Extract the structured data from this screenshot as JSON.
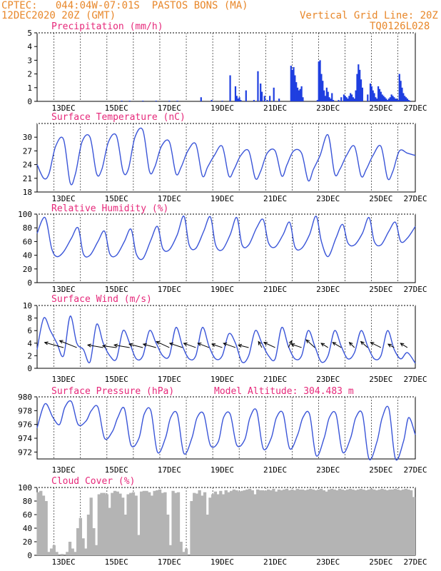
{
  "header": {
    "station": "CPTEC:   044:04W-07:01S  PASTOS BONS (MA)",
    "run": "12DEC2020 20Z (GMT)",
    "grid_note": "Vertical Grid Line: 20Z",
    "code": "TQ0126L028"
  },
  "colors": {
    "line": "#3a55d8",
    "bar": "#1e3ee0",
    "cloud": "#b4b4b4",
    "title": "#e6287a",
    "header": "#e8872a",
    "arrow": "#000000"
  },
  "x_ticks": [
    "13DEC",
    "15DEC",
    "17DEC",
    "19DEC",
    "21DEC",
    "23DEC",
    "25DEC",
    "27DEC"
  ],
  "chart_data": [
    {
      "type": "bar",
      "title": "Precipitation (mm/h)",
      "ylim": [
        0,
        5
      ],
      "yticks": [
        "0",
        "1",
        "2",
        "3",
        "4",
        "5"
      ],
      "x": [
        3.2,
        3.5,
        4.0,
        4.5,
        5.0,
        5.3,
        6.2,
        6.6,
        7.0,
        7.3,
        7.5,
        7.55,
        7.6,
        7.65,
        7.7,
        7.9,
        8.2,
        8.35,
        8.45,
        8.5,
        8.6,
        8.7,
        8.8,
        8.95,
        9.15,
        9.6,
        9.65,
        9.7,
        9.75,
        9.8,
        9.85,
        9.9,
        9.95,
        10.0,
        10.05,
        10.6,
        10.65,
        10.7,
        10.75,
        10.8,
        10.85,
        10.9,
        10.95,
        11.0,
        11.05,
        11.1,
        11.15,
        11.2,
        11.4,
        11.5,
        11.6,
        11.65,
        11.7,
        11.75,
        11.8,
        11.85,
        11.9,
        11.95,
        12.0,
        12.05,
        12.1,
        12.15,
        12.2,
        12.25,
        12.3,
        12.5,
        12.6,
        12.65,
        12.7,
        12.75,
        12.8,
        12.85,
        12.9,
        12.95,
        13.0,
        13.05,
        13.1,
        13.15,
        13.2,
        13.25,
        13.3,
        13.35,
        13.4,
        13.45,
        13.5,
        13.55,
        13.6,
        13.65,
        13.7,
        13.75,
        13.8,
        13.85,
        13.9,
        13.95,
        14.0,
        14.05,
        14.1
      ],
      "values": [
        0.05,
        0.05,
        0.05,
        0.05,
        0.05,
        0.05,
        0.3,
        0.1,
        0.05,
        1.9,
        1.1,
        0.4,
        0.2,
        0.3,
        0.1,
        0.8,
        0.1,
        2.2,
        1.3,
        0.7,
        0.4,
        0.1,
        0.4,
        1.0,
        0.2,
        2.6,
        2.3,
        2.5,
        1.9,
        1.4,
        1.0,
        0.8,
        0.9,
        1.1,
        0.3,
        0.1,
        2.9,
        3.0,
        2.0,
        1.5,
        0.8,
        0.4,
        1.0,
        0.7,
        0.3,
        0.2,
        0.6,
        0.1,
        0.1,
        0.3,
        0.5,
        0.4,
        0.3,
        0.2,
        0.4,
        0.6,
        0.5,
        0.3,
        0.2,
        0.8,
        2.0,
        2.7,
        2.3,
        1.6,
        1.0,
        0.5,
        1.3,
        1.1,
        0.8,
        0.6,
        0.3,
        0.2,
        1.1,
        0.9,
        0.7,
        0.5,
        0.4,
        0.3,
        0.2,
        0.1,
        0.2,
        0.3,
        0.5,
        0.4,
        0.3,
        0.2,
        0.2,
        0.1,
        2.0,
        1.5,
        1.0,
        0.6,
        0.4,
        0.3,
        0.2,
        0.1,
        0.05
      ]
    },
    {
      "type": "line",
      "title": "Surface Temperature (nC)",
      "ylim": [
        18,
        33
      ],
      "yticks": [
        "18",
        "21",
        "24",
        "27",
        "30"
      ],
      "x": [
        0,
        0.25,
        0.45,
        0.7,
        1.0,
        1.25,
        1.45,
        1.7,
        2.0,
        2.25,
        2.45,
        2.7,
        3.0,
        3.25,
        3.45,
        3.7,
        4.0,
        4.25,
        4.45,
        4.7,
        5.0,
        5.25,
        5.45,
        5.7,
        6.0,
        6.25,
        6.45,
        6.7,
        7.0,
        7.25,
        7.45,
        7.7,
        8.0,
        8.25,
        8.45,
        8.7,
        9.0,
        9.25,
        9.45,
        9.7,
        10.0,
        10.25,
        10.45,
        10.7,
        11.0,
        11.25,
        11.45,
        11.7,
        12.0,
        12.25,
        12.45,
        12.7,
        13.0,
        13.25,
        13.45,
        13.7,
        14.0,
        14.3
      ],
      "values": [
        24,
        21,
        22,
        28,
        29.5,
        20,
        22,
        29,
        30,
        22,
        23,
        29,
        30.3,
        22.5,
        23,
        30,
        31.5,
        22.5,
        23.5,
        28,
        29,
        22,
        23.5,
        27,
        28.5,
        21.5,
        23.5,
        26,
        28,
        21.5,
        23,
        26,
        27,
        21,
        22.5,
        26.5,
        27,
        21.5,
        24,
        27,
        26.5,
        20.5,
        23,
        26,
        30.5,
        22,
        23,
        26,
        28,
        21.5,
        23,
        26,
        28,
        21,
        22.5,
        27,
        26.5,
        26
      ]
    },
    {
      "type": "line",
      "title": "Relative Humidity (%)",
      "ylim": [
        0,
        100
      ],
      "yticks": [
        "0",
        "20",
        "40",
        "60",
        "80",
        "100"
      ],
      "x": [
        0,
        0.3,
        0.55,
        0.75,
        1.0,
        1.3,
        1.55,
        1.75,
        2.0,
        2.3,
        2.55,
        2.75,
        3.0,
        3.3,
        3.55,
        3.75,
        4.0,
        4.3,
        4.55,
        4.75,
        5.0,
        5.3,
        5.55,
        5.75,
        6.0,
        6.3,
        6.55,
        6.75,
        7.0,
        7.3,
        7.55,
        7.75,
        8.0,
        8.3,
        8.55,
        8.75,
        9.0,
        9.3,
        9.55,
        9.75,
        10.0,
        10.3,
        10.55,
        10.75,
        11.0,
        11.3,
        11.55,
        11.75,
        12.0,
        12.3,
        12.55,
        12.75,
        13.0,
        13.3,
        13.55,
        13.75,
        14.0,
        14.3
      ],
      "values": [
        72,
        95,
        50,
        38,
        45,
        65,
        80,
        42,
        40,
        60,
        75,
        42,
        40,
        60,
        78,
        42,
        35,
        62,
        82,
        50,
        48,
        70,
        97,
        55,
        50,
        75,
        96,
        55,
        48,
        70,
        95,
        55,
        55,
        80,
        92,
        58,
        52,
        70,
        88,
        52,
        50,
        70,
        97,
        60,
        38,
        65,
        85,
        58,
        55,
        72,
        95,
        60,
        55,
        75,
        88,
        60,
        65,
        82
      ]
    },
    {
      "type": "line",
      "title": "Surface Wind (m/s)",
      "ylim": [
        0,
        10
      ],
      "yticks": [
        "0",
        "2",
        "4",
        "6",
        "8",
        "10"
      ],
      "x": [
        0,
        0.25,
        0.5,
        0.75,
        1.0,
        1.25,
        1.5,
        1.75,
        2.0,
        2.25,
        2.5,
        2.75,
        3.0,
        3.25,
        3.5,
        3.75,
        4.0,
        4.25,
        4.5,
        4.75,
        5.0,
        5.25,
        5.5,
        5.75,
        6.0,
        6.25,
        6.5,
        6.75,
        7.0,
        7.25,
        7.5,
        7.75,
        8.0,
        8.25,
        8.5,
        8.75,
        9.0,
        9.25,
        9.5,
        9.75,
        10.0,
        10.25,
        10.5,
        10.75,
        11.0,
        11.25,
        11.5,
        11.75,
        12.0,
        12.25,
        12.5,
        12.75,
        13.0,
        13.25,
        13.5,
        13.75,
        14.0,
        14.3
      ],
      "values": [
        3,
        8,
        6,
        4,
        2,
        8.3,
        4,
        3,
        1,
        7,
        4,
        2,
        1.5,
        6,
        4,
        1.5,
        2,
        6,
        4,
        2,
        2,
        6.5,
        3.5,
        1.5,
        2,
        6.5,
        3.5,
        1.5,
        2,
        5.5,
        4,
        1,
        2,
        6,
        4,
        2,
        1.5,
        6.5,
        3.5,
        1.5,
        2,
        6,
        3.5,
        1,
        2,
        6,
        3.5,
        1.5,
        2.5,
        6,
        3.5,
        1.5,
        2,
        6,
        3,
        1.5,
        2.5,
        0.8
      ],
      "arrows_x": [
        1.0,
        1.5,
        2.5,
        3.0,
        3.5,
        4.0,
        4.5,
        5.0,
        5.5,
        6.0,
        6.5,
        7.0,
        7.5,
        8.0,
        8.5,
        9.0,
        9.5,
        10.0,
        10.5,
        11.0,
        11.5,
        12.0,
        12.5,
        13.0,
        13.5,
        14.0
      ],
      "arrows_u": [
        -2.2,
        -2.0,
        -1.8,
        -1.6,
        -1.8,
        -1.6,
        -1.5,
        -1.5,
        -1.5,
        -1.4,
        -1.3,
        -1.2,
        -1.4,
        -1.2,
        -0.4,
        -1.3,
        0.4,
        -1.2,
        -1.0,
        -0.8,
        -1.0,
        -0.6,
        -0.8,
        -1.2,
        -0.7,
        -0.8
      ],
      "arrows_v": [
        0.6,
        0.8,
        0.3,
        0.2,
        0.3,
        0.4,
        0.4,
        0.7,
        0.5,
        0.5,
        0.5,
        0.4,
        0.5,
        0.3,
        0.7,
        0.6,
        0.8,
        0.4,
        0.9,
        0.5,
        0.6,
        0.6,
        0.7,
        0.6,
        0.4,
        0.5
      ]
    },
    {
      "type": "line",
      "title": "Surface Pressure (hPa)",
      "extra": "Model Altitude: 304.483 m",
      "ylim": [
        971,
        980
      ],
      "yticks": [
        "972",
        "974",
        "976",
        "978",
        "980"
      ],
      "x": [
        0,
        0.3,
        0.6,
        0.85,
        1.05,
        1.3,
        1.55,
        1.85,
        2.05,
        2.3,
        2.55,
        2.85,
        3.05,
        3.3,
        3.55,
        3.85,
        4.05,
        4.3,
        4.55,
        4.85,
        5.05,
        5.3,
        5.55,
        5.85,
        6.05,
        6.3,
        6.55,
        6.85,
        7.05,
        7.3,
        7.55,
        7.85,
        8.05,
        8.3,
        8.55,
        8.85,
        9.05,
        9.3,
        9.55,
        9.85,
        10.05,
        10.3,
        10.55,
        10.85,
        11.05,
        11.3,
        11.55,
        11.85,
        12.05,
        12.3,
        12.55,
        12.85,
        13.05,
        13.3,
        13.55,
        13.85,
        14.05,
        14.3
      ],
      "values": [
        975.5,
        979,
        977,
        976,
        978.5,
        979.3,
        976,
        976.5,
        978,
        978.5,
        974,
        975,
        977,
        978.3,
        973,
        974,
        977.5,
        978,
        972,
        974,
        977,
        977.5,
        971.8,
        974,
        977,
        977.5,
        973,
        973.5,
        977,
        977.5,
        973,
        973.8,
        977,
        978,
        972.5,
        974,
        977,
        977.6,
        972.5,
        974.5,
        977,
        977.5,
        971.5,
        974,
        977,
        977.5,
        972,
        974,
        977,
        977.5,
        971,
        973.5,
        977,
        978.3,
        971,
        973.5,
        977,
        974.5
      ]
    },
    {
      "type": "bar",
      "title": "Cloud Cover (%)",
      "ylim": [
        0,
        100
      ],
      "yticks": [
        "0",
        "20",
        "40",
        "60",
        "80",
        "100"
      ],
      "x": [
        0.1,
        0.2,
        0.3,
        0.4,
        0.5,
        0.6,
        0.7,
        0.8,
        0.9,
        1.0,
        1.1,
        1.2,
        1.3,
        1.4,
        1.5,
        1.6,
        1.7,
        1.8,
        1.9,
        2.0,
        2.1,
        2.2,
        2.3,
        2.4,
        2.5,
        2.6,
        2.7,
        2.8,
        2.9,
        3.0,
        3.1,
        3.2,
        3.3,
        3.4,
        3.5,
        3.6,
        3.7,
        3.8,
        3.9,
        4.0,
        4.1,
        4.2,
        4.3,
        4.4,
        4.5,
        4.6,
        4.7,
        4.8,
        4.9,
        5.0,
        5.1,
        5.2,
        5.3,
        5.4,
        5.5,
        5.6,
        5.7,
        5.8,
        5.9,
        6.0,
        6.1,
        6.2,
        6.3,
        6.4,
        6.5,
        6.6,
        6.7,
        6.8,
        6.9,
        7.0,
        7.1,
        7.2,
        7.3,
        7.4,
        7.5,
        7.6,
        7.7,
        7.8,
        7.9,
        8.0,
        8.1,
        8.2,
        8.3,
        8.4,
        8.5,
        8.6,
        8.7,
        8.8,
        8.9,
        9.0,
        9.1,
        9.2,
        9.3,
        9.4,
        9.5,
        9.6,
        9.7,
        9.8,
        9.9,
        10.0,
        10.1,
        10.2,
        10.3,
        10.4,
        10.5,
        10.6,
        10.7,
        10.8,
        10.9,
        11.0,
        11.1,
        11.2,
        11.3,
        11.4,
        11.5,
        11.6,
        11.7,
        11.8,
        11.9,
        12.0,
        12.1,
        12.2,
        12.3,
        12.4,
        12.5,
        12.6,
        12.7,
        12.8,
        12.9,
        13.0,
        13.1,
        13.2,
        13.3,
        13.4,
        13.5,
        13.6,
        13.7,
        13.8,
        13.9,
        14.0,
        14.1,
        14.2,
        14.3
      ],
      "values": [
        93,
        95,
        88,
        80,
        5,
        10,
        15,
        5,
        0,
        2,
        0,
        5,
        20,
        10,
        5,
        40,
        55,
        25,
        10,
        60,
        85,
        40,
        15,
        90,
        92,
        92,
        90,
        70,
        92,
        95,
        94,
        91,
        85,
        60,
        90,
        92,
        93,
        88,
        30,
        94,
        95,
        95,
        93,
        88,
        95,
        96,
        97,
        92,
        93,
        60,
        15,
        95,
        92,
        93,
        20,
        5,
        10,
        0,
        80,
        92,
        91,
        96,
        88,
        93,
        60,
        85,
        90,
        94,
        90,
        95,
        90,
        96,
        93,
        95,
        97,
        96,
        94,
        95,
        96,
        97,
        98,
        96,
        90,
        97,
        96,
        96,
        95,
        97,
        96,
        98,
        94,
        97,
        96,
        97,
        98,
        96,
        97,
        96,
        98,
        97,
        97,
        96,
        97,
        98,
        97,
        96,
        97,
        98,
        96,
        94,
        97,
        98,
        97,
        96,
        98,
        97,
        96,
        97,
        98,
        97,
        96,
        97,
        98,
        97,
        96,
        97,
        98,
        97,
        96,
        97,
        98,
        97,
        96,
        97,
        97,
        98,
        97,
        96,
        97,
        98,
        97,
        96,
        86
      ]
    }
  ]
}
